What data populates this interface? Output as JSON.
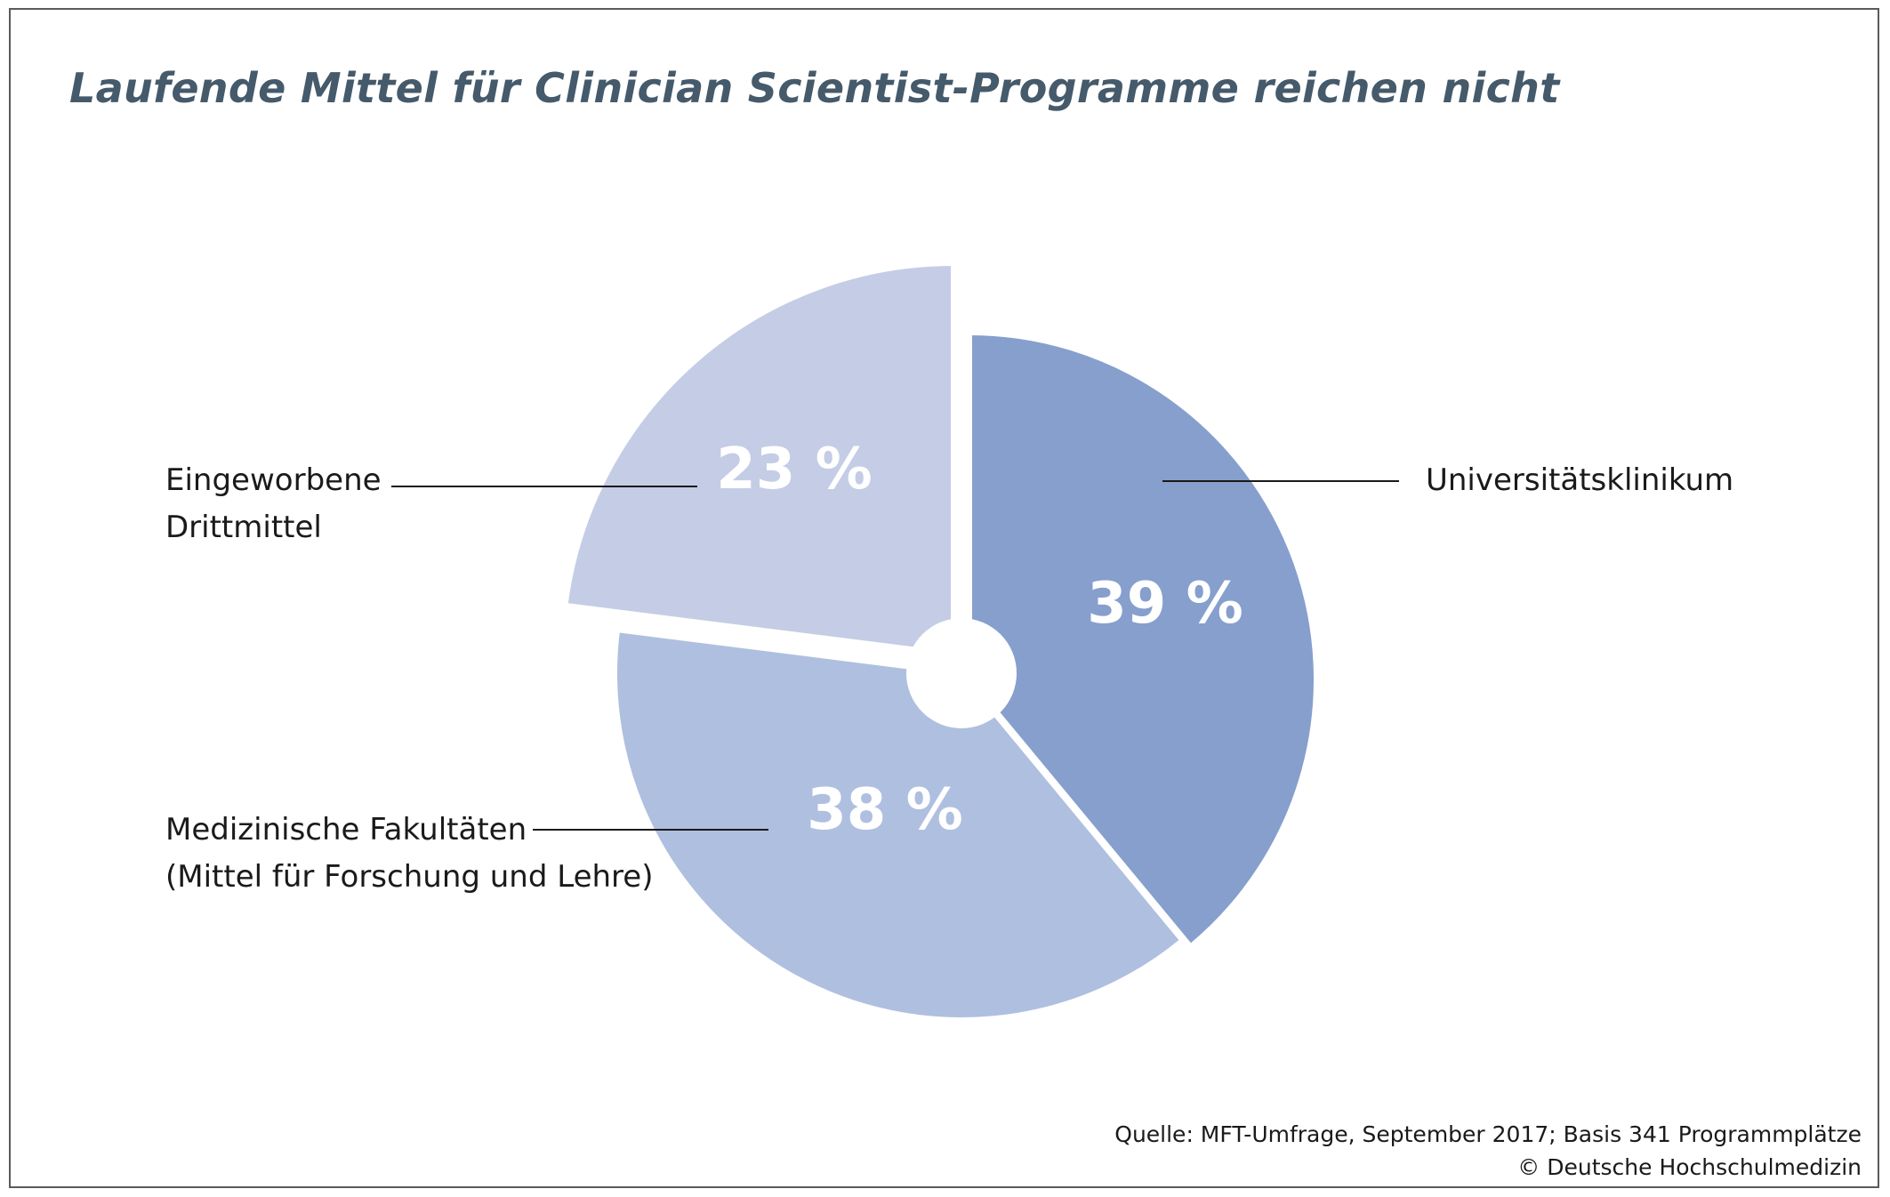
{
  "chart_data": {
    "type": "pie",
    "title": "Laufende Mittel für Clinician Scientist-Programme reichen nicht",
    "slices": [
      {
        "label_lines": [
          "Universitätsklinikum"
        ],
        "value": 39,
        "value_label": "39 %",
        "color": "#869fcd",
        "exploded": true
      },
      {
        "label_lines": [
          "Medizinische Fakultäten",
          "(Mittel für Forschung und Lehre)"
        ],
        "value": 38,
        "value_label": "38 %",
        "color": "#afbfdf",
        "exploded": false
      },
      {
        "label_lines": [
          "Eingeworbene",
          "Drittmittel"
        ],
        "value": 23,
        "value_label": "23 %",
        "color": "#c4cde5",
        "exploded": true
      }
    ],
    "legend": "none",
    "grid": false
  },
  "footer": {
    "source_line": "Quelle: MFT-Umfrage, September 2017; Basis 341 Programmplätze",
    "copyright_line": "© Deutsche Hochschulmedizin"
  }
}
